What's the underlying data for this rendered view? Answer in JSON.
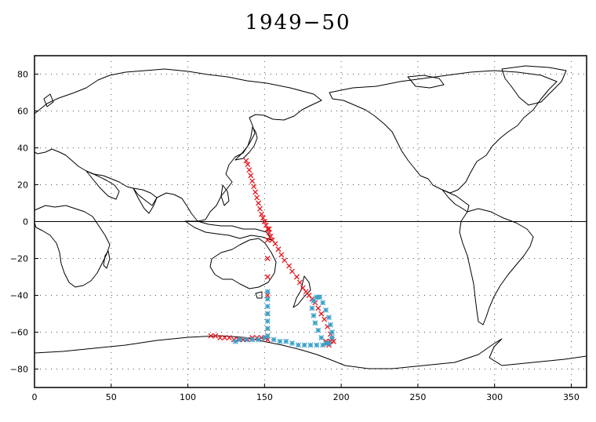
{
  "chart_data": {
    "type": "scatter",
    "title": "1949−50",
    "xlabel": "",
    "ylabel": "",
    "xlim": [
      0,
      360
    ],
    "ylim": [
      -90,
      90
    ],
    "x_ticks": [
      "0",
      "50",
      "100",
      "150",
      "200",
      "250",
      "300",
      "350"
    ],
    "y_ticks": [
      "80",
      "60",
      "40",
      "20",
      "0",
      "−20",
      "−40",
      "−60",
      "−80"
    ],
    "grid": true,
    "equator_line": true,
    "background": "world coastline map",
    "series": [
      {
        "marker": "x",
        "color": "#e8141c",
        "points": [
          [
            138,
            33
          ],
          [
            139,
            31
          ],
          [
            140,
            28
          ],
          [
            141,
            25
          ],
          [
            142,
            22
          ],
          [
            143,
            19
          ],
          [
            144,
            16
          ],
          [
            145,
            13
          ],
          [
            146,
            10
          ],
          [
            147,
            7
          ],
          [
            148,
            4
          ],
          [
            149,
            2
          ],
          [
            150,
            0
          ],
          [
            151,
            -2
          ],
          [
            152,
            -4
          ],
          [
            153,
            -6
          ],
          [
            154,
            -8
          ],
          [
            155,
            -10
          ],
          [
            157,
            -12
          ],
          [
            159,
            -15
          ],
          [
            161,
            -18
          ],
          [
            163,
            -21
          ],
          [
            166,
            -24
          ],
          [
            168,
            -27
          ],
          [
            171,
            -30
          ],
          [
            173,
            -33
          ],
          [
            175,
            -36
          ],
          [
            177,
            -38
          ],
          [
            179,
            -40
          ],
          [
            181,
            -42
          ],
          [
            183,
            -44
          ],
          [
            185,
            -47
          ],
          [
            187,
            -50
          ],
          [
            189,
            -53
          ],
          [
            191,
            -57
          ],
          [
            193,
            -61
          ],
          [
            194,
            -64
          ],
          [
            195,
            -65
          ],
          [
            193,
            -65
          ],
          [
            191,
            -66
          ],
          [
            190,
            -65
          ],
          [
            192,
            -67
          ],
          [
            153,
            -4
          ],
          [
            152,
            -10
          ],
          [
            152,
            -20
          ],
          [
            152,
            -30
          ],
          [
            152,
            -40
          ],
          [
            152,
            -50
          ],
          [
            152,
            -58
          ],
          [
            152,
            -62
          ],
          [
            152,
            -64
          ],
          [
            115,
            -62
          ],
          [
            118,
            -62
          ],
          [
            121,
            -63
          ],
          [
            124,
            -63
          ],
          [
            127,
            -63
          ],
          [
            130,
            -64
          ],
          [
            133,
            -64
          ],
          [
            136,
            -64
          ],
          [
            139,
            -64
          ],
          [
            142,
            -63
          ],
          [
            145,
            -63
          ],
          [
            148,
            -63
          ],
          [
            151,
            -63
          ]
        ]
      },
      {
        "marker": "*",
        "color": "#3aa0c8",
        "points": [
          [
            152,
            -38
          ],
          [
            152,
            -42
          ],
          [
            152,
            -46
          ],
          [
            152,
            -50
          ],
          [
            152,
            -54
          ],
          [
            152,
            -58
          ],
          [
            152,
            -62
          ],
          [
            150,
            -63
          ],
          [
            146,
            -64
          ],
          [
            142,
            -64
          ],
          [
            138,
            -64
          ],
          [
            134,
            -64
          ],
          [
            131,
            -65
          ],
          [
            156,
            -64
          ],
          [
            160,
            -65
          ],
          [
            164,
            -65
          ],
          [
            168,
            -66
          ],
          [
            172,
            -67
          ],
          [
            176,
            -67
          ],
          [
            180,
            -67
          ],
          [
            184,
            -67
          ],
          [
            188,
            -67
          ],
          [
            192,
            -66
          ],
          [
            194,
            -63
          ],
          [
            194,
            -60
          ],
          [
            193,
            -56
          ],
          [
            192,
            -52
          ],
          [
            190,
            -48
          ],
          [
            188,
            -44
          ],
          [
            186,
            -41
          ],
          [
            184,
            -41
          ],
          [
            182,
            -43
          ],
          [
            181,
            -47
          ],
          [
            182,
            -51
          ],
          [
            183,
            -55
          ],
          [
            185,
            -59
          ],
          [
            187,
            -63
          ],
          [
            190,
            -66
          ]
        ]
      }
    ]
  },
  "colors": {
    "background": "#ffffff",
    "axis": "#000000",
    "coastline": "#000000"
  }
}
